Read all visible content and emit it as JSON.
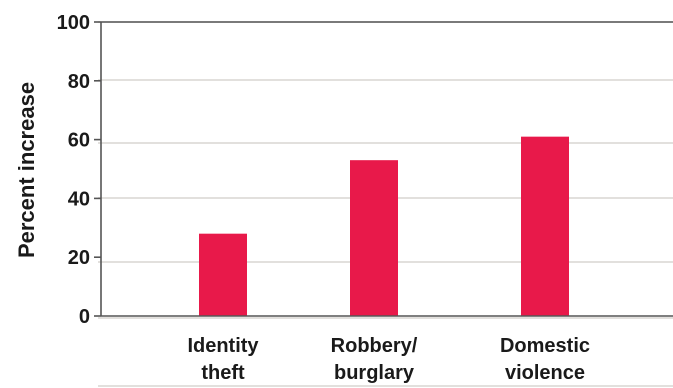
{
  "chart_data": {
    "type": "bar",
    "categories": [
      [
        "Identity",
        "theft"
      ],
      [
        "Robbery/",
        "burglary"
      ],
      [
        "Domestic",
        "violence"
      ]
    ],
    "values": [
      28,
      53,
      61
    ],
    "ylabel": "Percent increase",
    "ylim": [
      0,
      100
    ],
    "yticks": [
      0,
      20,
      40,
      60,
      80,
      100
    ],
    "grid": false,
    "bar_color": "#e8194a"
  }
}
